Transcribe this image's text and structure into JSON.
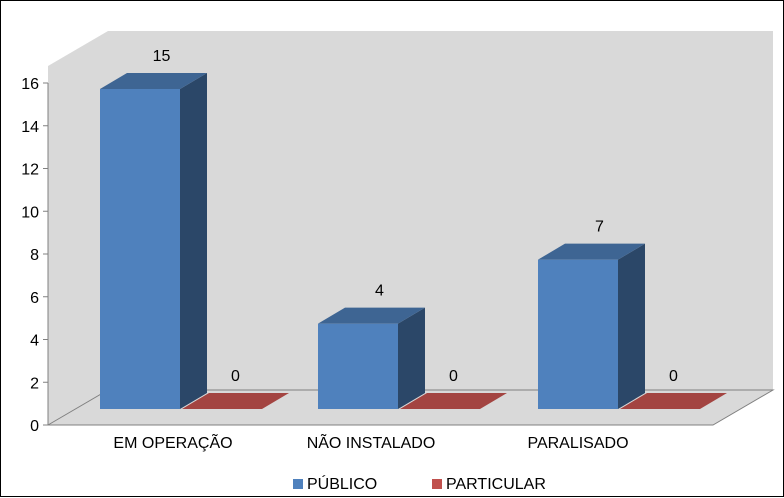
{
  "chart_data": {
    "type": "bar",
    "style": "3d-clustered-column",
    "categories": [
      "EM OPERAÇÃO",
      "NÃO INSTALADO",
      "PARALISADO"
    ],
    "series": [
      {
        "name": "PÚBLICO",
        "values": [
          15,
          4,
          7
        ],
        "color": "#4F81BD"
      },
      {
        "name": "PARTICULAR",
        "values": [
          0,
          0,
          0
        ],
        "color": "#C0504D"
      }
    ],
    "yticks": [
      0,
      2,
      4,
      6,
      8,
      10,
      12,
      14,
      16
    ],
    "ylim": [
      0,
      16
    ],
    "legend_position": "bottom",
    "colors": {
      "wall": "#D9D9D9",
      "floor": "#D9D9D9",
      "outline": "#808080"
    }
  }
}
